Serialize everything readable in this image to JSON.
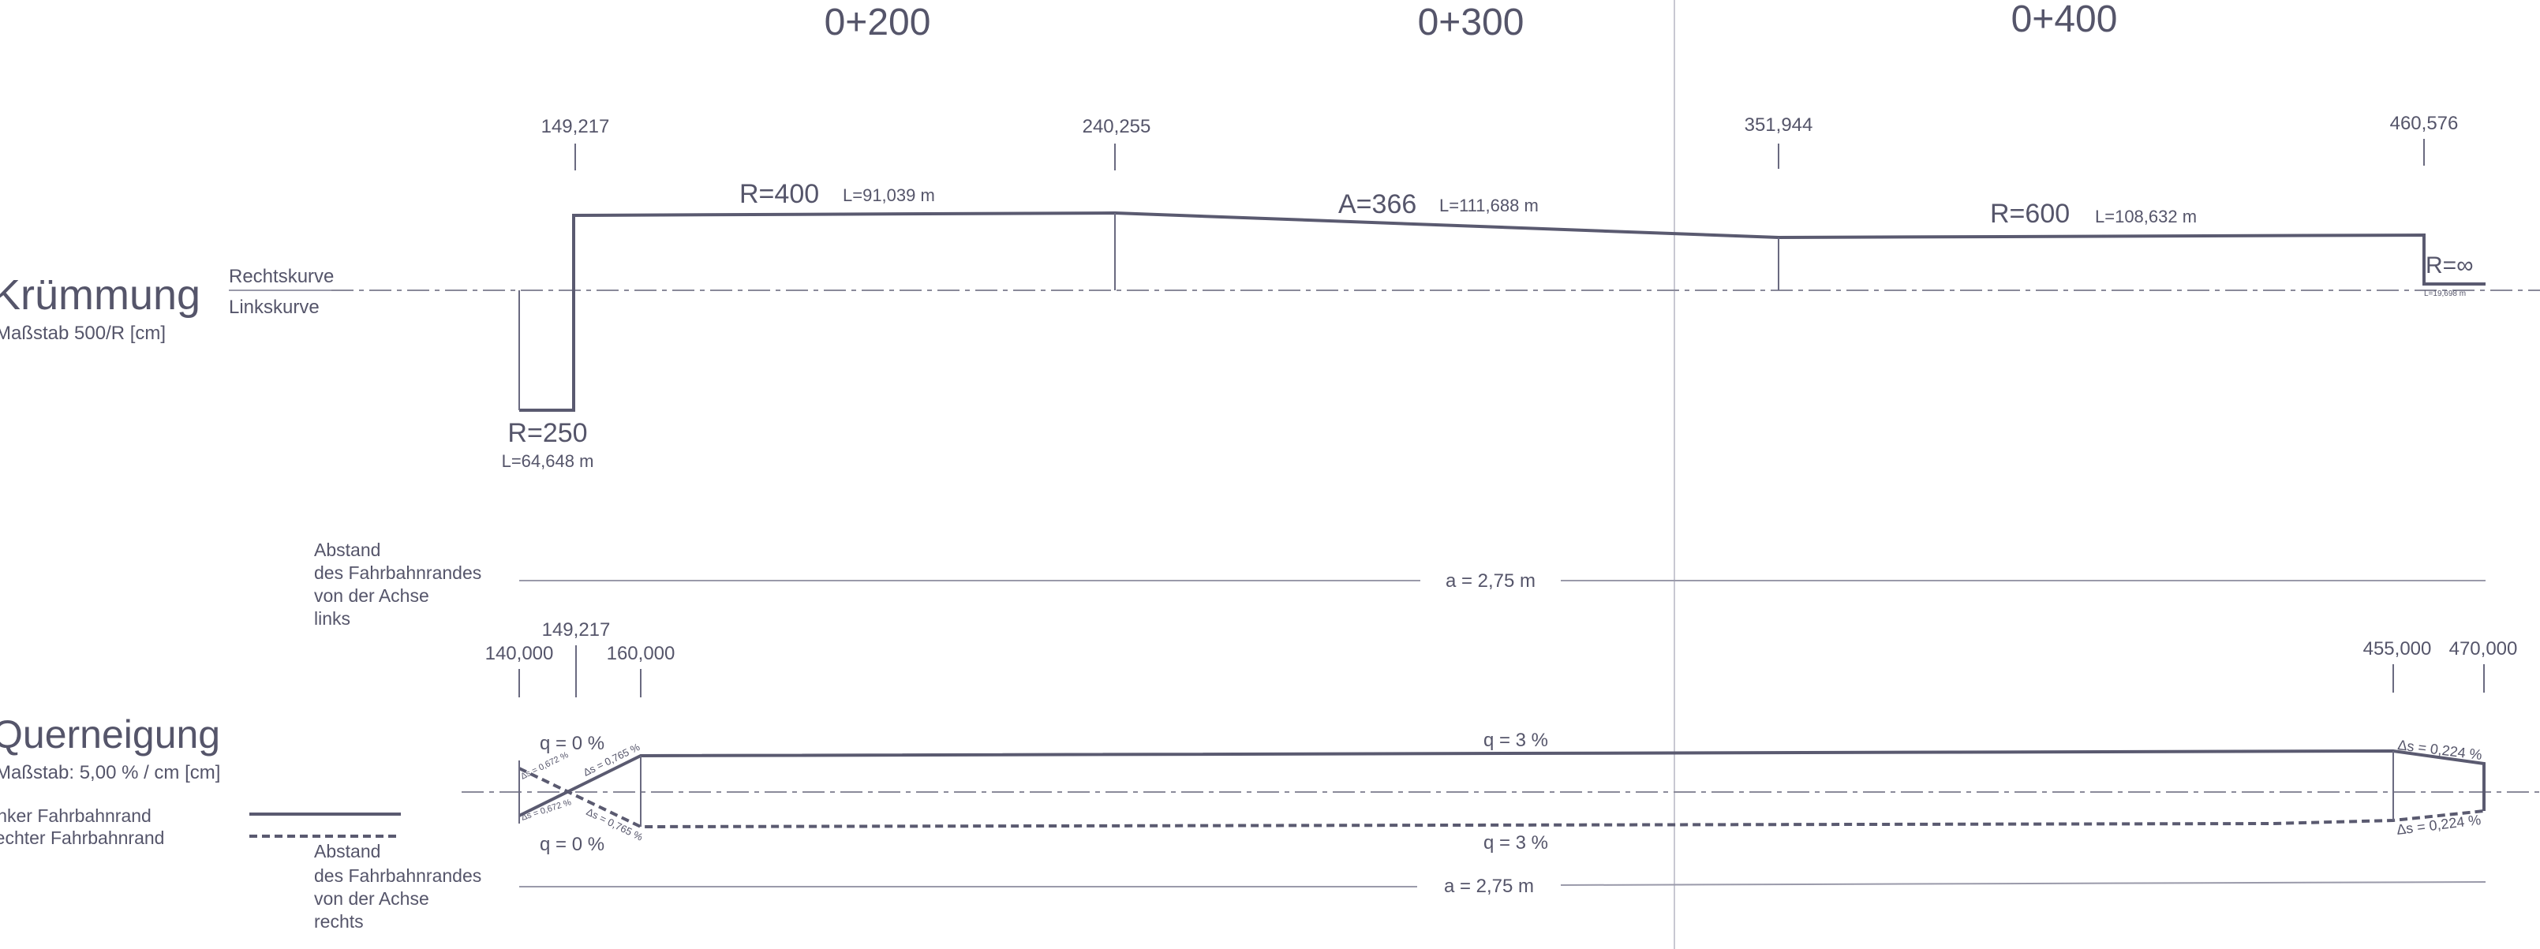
{
  "stations": [
    "0+200",
    "0+300",
    "0+400"
  ],
  "curvature": {
    "title": "Krümmung",
    "scale": "Maßstab 500/R [cm]",
    "right_label": "Rechtskurve",
    "left_label": "Linkskurve",
    "station_labels": [
      "149,217",
      "240,255",
      "351,944",
      "460,576"
    ],
    "elements": [
      {
        "name": "R=250",
        "length": "L=64,648 m"
      },
      {
        "name": "R=400",
        "length": "L=91,039 m"
      },
      {
        "name": "A=366",
        "length": "L=111,688 m"
      },
      {
        "name": "R=600",
        "length": "L=108,632 m"
      },
      {
        "name": "R=∞",
        "length": "L=19,698 m"
      }
    ]
  },
  "edge_left": {
    "label": [
      "Abstand",
      "des Fahrbahnrandes",
      "von der Achse",
      "links"
    ],
    "value": "a = 2,75 m"
  },
  "superelevation": {
    "title": "Querneigung",
    "scale": "Maßstab: 5,00 % / cm [cm]",
    "legend_left": "linker Fahrbahnrand",
    "legend_right": "rechter Fahrbahnrand",
    "station_labels": [
      "140,000",
      "149,217",
      "160,000",
      "455,000",
      "470,000"
    ],
    "q_top_start": "q = 0 %",
    "q_bottom_start": "q = 0 %",
    "q_top_main": "q = 3 %",
    "q_bottom_main": "q = 3 %",
    "ramp_labels": [
      "Δs = 0,765 %",
      "Δs = 0,765 %",
      "Δs = 0,672 %",
      "Δs = 0,672 %"
    ],
    "ramp_end_top": "Δs = 0,224 %",
    "ramp_end_bottom": "Δs = 0,224 %"
  },
  "edge_right": {
    "label": [
      "Abstand",
      "des Fahrbahnrandes",
      "von der Achse",
      "rechts"
    ],
    "value": "a = 2,75 m"
  }
}
